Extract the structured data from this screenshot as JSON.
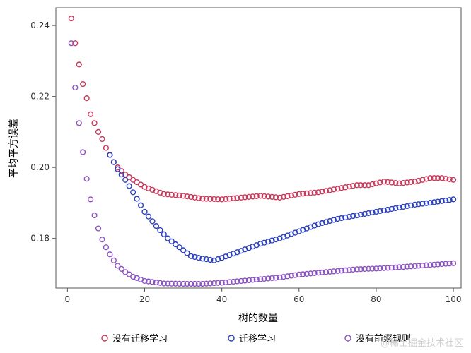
{
  "chart_data": {
    "type": "scatter",
    "title": "",
    "xlabel": "树的数量",
    "ylabel": "平均平方误差",
    "xlim": [
      -3,
      102
    ],
    "ylim": [
      0.166,
      0.245
    ],
    "xticks": [
      0,
      20,
      40,
      60,
      80,
      100
    ],
    "yticks": [
      0.18,
      0.2,
      0.22,
      0.24
    ],
    "xtick_labels": [
      "0",
      "20",
      "40",
      "60",
      "80",
      "100"
    ],
    "ytick_labels": [
      "0.18",
      "0.20",
      "0.22",
      "0.24"
    ],
    "grid": false,
    "legend_position": "bottom",
    "marker": "open-circle",
    "x_range": [
      1,
      100
    ],
    "series": [
      {
        "name": "没有迁移学习",
        "color": "#c8385b",
        "anchors": [
          [
            1,
            0.242
          ],
          [
            2,
            0.235
          ],
          [
            3,
            0.229
          ],
          [
            4,
            0.2235
          ],
          [
            5,
            0.2195
          ],
          [
            6,
            0.215
          ],
          [
            7,
            0.2125
          ],
          [
            8,
            0.21
          ],
          [
            9,
            0.208
          ],
          [
            10,
            0.2055
          ],
          [
            11,
            0.2035
          ],
          [
            12,
            0.2015
          ],
          [
            13,
            0.2
          ],
          [
            14,
            0.199
          ],
          [
            15,
            0.198
          ],
          [
            17,
            0.1965
          ],
          [
            20,
            0.1945
          ],
          [
            25,
            0.1925
          ],
          [
            30,
            0.192
          ],
          [
            35,
            0.1912
          ],
          [
            40,
            0.191
          ],
          [
            45,
            0.1915
          ],
          [
            50,
            0.192
          ],
          [
            55,
            0.1915
          ],
          [
            60,
            0.1925
          ],
          [
            65,
            0.193
          ],
          [
            70,
            0.194
          ],
          [
            75,
            0.195
          ],
          [
            78,
            0.195
          ],
          [
            82,
            0.196
          ],
          [
            86,
            0.1955
          ],
          [
            90,
            0.196
          ],
          [
            94,
            0.197
          ],
          [
            97,
            0.197
          ],
          [
            100,
            0.1965
          ]
        ]
      },
      {
        "name": "迁移学习",
        "color": "#2a3fbd",
        "anchors": [
          [
            11,
            0.2035
          ],
          [
            12,
            0.2015
          ],
          [
            13,
            0.1995
          ],
          [
            15,
            0.1965
          ],
          [
            17,
            0.193
          ],
          [
            20,
            0.1875
          ],
          [
            23,
            0.1835
          ],
          [
            26,
            0.18
          ],
          [
            29,
            0.1775
          ],
          [
            32,
            0.175
          ],
          [
            35,
            0.1743
          ],
          [
            38,
            0.1738
          ],
          [
            40,
            0.1745
          ],
          [
            45,
            0.1765
          ],
          [
            50,
            0.1785
          ],
          [
            55,
            0.18
          ],
          [
            60,
            0.182
          ],
          [
            65,
            0.184
          ],
          [
            70,
            0.1855
          ],
          [
            75,
            0.1865
          ],
          [
            80,
            0.1875
          ],
          [
            85,
            0.1885
          ],
          [
            90,
            0.1895
          ],
          [
            95,
            0.1902
          ],
          [
            100,
            0.191
          ]
        ]
      },
      {
        "name": "没有前缀规则",
        "color": "#8b52c0",
        "anchors": [
          [
            1,
            0.235
          ],
          [
            2,
            0.2225
          ],
          [
            3,
            0.2125
          ],
          [
            4,
            0.2043
          ],
          [
            5,
            0.1968
          ],
          [
            6,
            0.191
          ],
          [
            7,
            0.1865
          ],
          [
            8,
            0.1828
          ],
          [
            9,
            0.1797
          ],
          [
            10,
            0.1775
          ],
          [
            11,
            0.1755
          ],
          [
            12,
            0.1738
          ],
          [
            13,
            0.1723
          ],
          [
            15,
            0.1705
          ],
          [
            17,
            0.1692
          ],
          [
            20,
            0.168
          ],
          [
            25,
            0.1673
          ],
          [
            30,
            0.1672
          ],
          [
            35,
            0.1672
          ],
          [
            40,
            0.1675
          ],
          [
            45,
            0.168
          ],
          [
            50,
            0.1685
          ],
          [
            55,
            0.169
          ],
          [
            60,
            0.1698
          ],
          [
            65,
            0.1703
          ],
          [
            70,
            0.1708
          ],
          [
            75,
            0.1713
          ],
          [
            80,
            0.1715
          ],
          [
            85,
            0.1718
          ],
          [
            90,
            0.1722
          ],
          [
            95,
            0.1726
          ],
          [
            100,
            0.173
          ]
        ]
      }
    ]
  },
  "watermark": "@稀土掘金技术社区"
}
